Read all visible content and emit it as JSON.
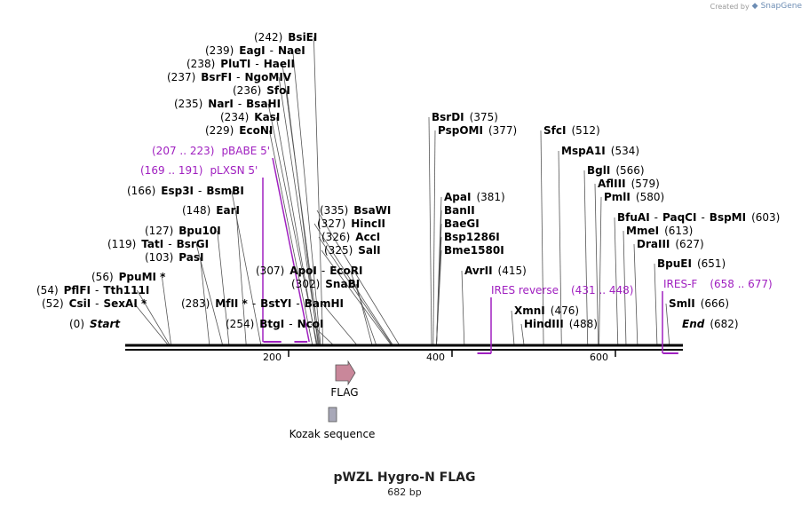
{
  "credit": {
    "prefix": "Created by",
    "brand": "SnapGene"
  },
  "title": "pWZL Hygro-N FLAG",
  "length_label": "682 bp",
  "colors": {
    "primer": "#a020c0",
    "flag": "#c9879a",
    "kozak": "#a8a8b8"
  },
  "ticks": [
    "200",
    "400",
    "600"
  ],
  "sites": [
    {
      "bp": 242,
      "parts": [
        [
          "(242)",
          "pos"
        ],
        [
          "BsiEI",
          "enz"
        ]
      ]
    },
    {
      "bp": 239,
      "parts": [
        [
          "(239)",
          "pos"
        ],
        [
          "EagI",
          "enz"
        ],
        [
          "-",
          "sep"
        ],
        [
          "NaeI",
          "enz"
        ]
      ]
    },
    {
      "bp": 238,
      "parts": [
        [
          "(238)",
          "pos"
        ],
        [
          "PluTI",
          "enz"
        ],
        [
          "-",
          "sep"
        ],
        [
          "HaeII",
          "enz"
        ]
      ]
    },
    {
      "bp": 237,
      "parts": [
        [
          "(237)",
          "pos"
        ],
        [
          "BsrFI",
          "enz"
        ],
        [
          "-",
          "sep"
        ],
        [
          "NgoMIV",
          "enz"
        ]
      ]
    },
    {
      "bp": 236,
      "parts": [
        [
          "(236)",
          "pos"
        ],
        [
          "SfoI",
          "enz"
        ]
      ]
    },
    {
      "bp": 235,
      "parts": [
        [
          "(235)",
          "pos"
        ],
        [
          "NarI",
          "enz"
        ],
        [
          "-",
          "sep"
        ],
        [
          "BsaHI",
          "enz"
        ]
      ]
    },
    {
      "bp": 234,
      "parts": [
        [
          "(234)",
          "pos"
        ],
        [
          "KasI",
          "enz"
        ]
      ]
    },
    {
      "bp": 229,
      "parts": [
        [
          "(229)",
          "pos"
        ],
        [
          "EcoNI",
          "enz"
        ]
      ]
    },
    {
      "bp": 166,
      "parts": [
        [
          "(166)",
          "pos"
        ],
        [
          "Esp3I",
          "enz"
        ],
        [
          "-",
          "sep"
        ],
        [
          "BsmBI",
          "enz"
        ]
      ]
    },
    {
      "bp": 148,
      "parts": [
        [
          "(148)",
          "pos"
        ],
        [
          "EarI",
          "enz"
        ]
      ]
    },
    {
      "bp": 127,
      "parts": [
        [
          "(127)",
          "pos"
        ],
        [
          "Bpu10I",
          "enz"
        ]
      ]
    },
    {
      "bp": 119,
      "parts": [
        [
          "(119)",
          "pos"
        ],
        [
          "TatI",
          "enz"
        ],
        [
          "-",
          "sep"
        ],
        [
          "BsrGI",
          "enz"
        ]
      ]
    },
    {
      "bp": 103,
      "parts": [
        [
          "(103)",
          "pos"
        ],
        [
          "PasI",
          "enz"
        ]
      ]
    },
    {
      "bp": 56,
      "parts": [
        [
          "(56)",
          "pos"
        ],
        [
          "PpuMI *",
          "enz"
        ]
      ]
    },
    {
      "bp": 54,
      "parts": [
        [
          "(54)",
          "pos"
        ],
        [
          "PflFI",
          "enz"
        ],
        [
          "-",
          "sep"
        ],
        [
          "Tth111I",
          "enz"
        ]
      ]
    },
    {
      "bp": 52,
      "parts": [
        [
          "(52)",
          "pos"
        ],
        [
          "CsiI",
          "enz"
        ],
        [
          "-",
          "sep"
        ],
        [
          "SexAI *",
          "enz"
        ]
      ]
    },
    {
      "bp": 0,
      "parts": [
        [
          "(0)",
          "pos"
        ],
        [
          "Start",
          "enz ital"
        ]
      ]
    },
    {
      "bp": 283,
      "parts": [
        [
          "(283)",
          "pos"
        ],
        [
          "MfII *",
          "enz"
        ],
        [
          "-",
          "sep"
        ],
        [
          "BstYI",
          "enz"
        ],
        [
          "-",
          "sep"
        ],
        [
          "BamHI",
          "enz"
        ]
      ]
    },
    {
      "bp": 254,
      "parts": [
        [
          "(254)",
          "pos"
        ],
        [
          "BtgI",
          "enz"
        ],
        [
          "-",
          "sep"
        ],
        [
          "NcoI",
          "enz"
        ]
      ]
    },
    {
      "bp": 307,
      "parts": [
        [
          "(307)",
          "pos"
        ],
        [
          "ApoI",
          "enz"
        ],
        [
          "-",
          "sep"
        ],
        [
          "EcoRI",
          "enz"
        ]
      ]
    },
    {
      "bp": 302,
      "parts": [
        [
          "(302)",
          "pos"
        ],
        [
          "SnaBI",
          "enz"
        ]
      ]
    },
    {
      "bp": 335,
      "parts": [
        [
          "(335)",
          "pos"
        ],
        [
          "BsaWI",
          "enz"
        ]
      ]
    },
    {
      "bp": 327,
      "parts": [
        [
          "(327)",
          "pos"
        ],
        [
          "HincII",
          "enz"
        ]
      ]
    },
    {
      "bp": 326,
      "parts": [
        [
          "(326)",
          "pos"
        ],
        [
          "AccI",
          "enz"
        ]
      ]
    },
    {
      "bp": 325,
      "parts": [
        [
          "(325)",
          "pos"
        ],
        [
          "SalI",
          "enz"
        ]
      ]
    },
    {
      "bp": 375,
      "parts": [
        [
          "BsrDI",
          "enz"
        ],
        [
          "(375)",
          "pos"
        ]
      ]
    },
    {
      "bp": 377,
      "parts": [
        [
          "PspOMI",
          "enz"
        ],
        [
          "(377)",
          "pos"
        ]
      ]
    },
    {
      "bp": 381,
      "parts": [
        [
          "ApaI",
          "enz"
        ],
        [
          "(381)",
          "pos"
        ]
      ]
    },
    {
      "bp": 381,
      "parts": [
        [
          "BanII",
          "enz"
        ]
      ]
    },
    {
      "bp": 381,
      "parts": [
        [
          "BaeGI",
          "enz"
        ]
      ]
    },
    {
      "bp": 381,
      "parts": [
        [
          "Bsp1286I",
          "enz"
        ]
      ]
    },
    {
      "bp": 381,
      "parts": [
        [
          "Bme1580I",
          "enz"
        ]
      ]
    },
    {
      "bp": 415,
      "parts": [
        [
          "AvrII",
          "enz"
        ],
        [
          "(415)",
          "pos"
        ]
      ]
    },
    {
      "bp": 512,
      "parts": [
        [
          "SfcI",
          "enz"
        ],
        [
          "(512)",
          "pos"
        ]
      ]
    },
    {
      "bp": 534,
      "parts": [
        [
          "MspA1I",
          "enz"
        ],
        [
          "(534)",
          "pos"
        ]
      ]
    },
    {
      "bp": 566,
      "parts": [
        [
          "BglI",
          "enz"
        ],
        [
          "(566)",
          "pos"
        ]
      ]
    },
    {
      "bp": 579,
      "parts": [
        [
          "AflIII",
          "enz"
        ],
        [
          "(579)",
          "pos"
        ]
      ]
    },
    {
      "bp": 580,
      "parts": [
        [
          "PmlI",
          "enz"
        ],
        [
          "(580)",
          "pos"
        ]
      ]
    },
    {
      "bp": 603,
      "parts": [
        [
          "BfuAI",
          "enz"
        ],
        [
          "-",
          "sep"
        ],
        [
          "PaqCI",
          "enz"
        ],
        [
          "-",
          "sep"
        ],
        [
          "BspMI",
          "enz"
        ],
        [
          "(603)",
          "pos"
        ]
      ]
    },
    {
      "bp": 613,
      "parts": [
        [
          "MmeI",
          "enz"
        ],
        [
          "(613)",
          "pos"
        ]
      ]
    },
    {
      "bp": 627,
      "parts": [
        [
          "DraIII",
          "enz"
        ],
        [
          "(627)",
          "pos"
        ]
      ]
    },
    {
      "bp": 651,
      "parts": [
        [
          "BpuEI",
          "enz"
        ],
        [
          "(651)",
          "pos"
        ]
      ]
    },
    {
      "bp": 666,
      "parts": [
        [
          "SmlI",
          "enz"
        ],
        [
          "(666)",
          "pos"
        ]
      ]
    },
    {
      "bp": 682,
      "parts": [
        [
          "End",
          "enz ital"
        ],
        [
          "(682)",
          "pos"
        ]
      ]
    },
    {
      "bp": 476,
      "parts": [
        [
          "XmnI",
          "enz"
        ],
        [
          "(476)",
          "pos"
        ]
      ]
    },
    {
      "bp": 488,
      "parts": [
        [
          "HindIII",
          "enz"
        ],
        [
          "(488)",
          "pos"
        ]
      ]
    }
  ],
  "primers": [
    {
      "range": "(207 .. 223)",
      "name": "pBABE 5'",
      "start": 207,
      "end": 223
    },
    {
      "range": "(169 .. 191)",
      "name": "pLXSN 5'",
      "start": 169,
      "end": 191
    },
    {
      "name": "IRES reverse",
      "range": "(431 .. 448)",
      "start": 431,
      "end": 448
    },
    {
      "name": "IRES-F",
      "range": "(658 .. 677)",
      "start": 658,
      "end": 677
    }
  ],
  "features": [
    {
      "name": "FLAG",
      "start": 256,
      "end": 280
    },
    {
      "name": "Kozak sequence",
      "start": 250,
      "end": 259
    }
  ]
}
